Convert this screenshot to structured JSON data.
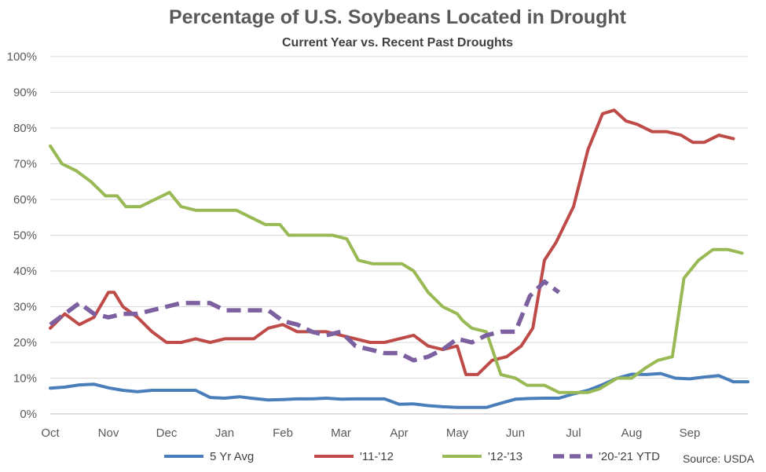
{
  "chart_data": {
    "type": "line",
    "title": "Percentage of U.S. Soybeans Located in Drought",
    "subtitle": "Current Year vs. Recent Past Droughts",
    "xlabel": "",
    "ylabel": "",
    "categories": [
      "Oct",
      "Nov",
      "Dec",
      "Jan",
      "Feb",
      "Mar",
      "Apr",
      "May",
      "Jun",
      "Jul",
      "Aug",
      "Sep"
    ],
    "ylim": [
      0,
      100
    ],
    "yticks": [
      "0%",
      "10%",
      "20%",
      "30%",
      "40%",
      "50%",
      "60%",
      "70%",
      "80%",
      "90%",
      "100%"
    ],
    "grid": true,
    "legend_position": "bottom",
    "source": "Source: USDA",
    "series": [
      {
        "name": "5 Yr Avg",
        "color": "#4a7ebb",
        "dashed": false,
        "points": [
          [
            0,
            7.2
          ],
          [
            0.25,
            7.5
          ],
          [
            0.5,
            8.1
          ],
          [
            0.75,
            8.3
          ],
          [
            1,
            7.3
          ],
          [
            1.25,
            6.6
          ],
          [
            1.5,
            6.2
          ],
          [
            1.75,
            6.6
          ],
          [
            2,
            6.6
          ],
          [
            2.25,
            6.6
          ],
          [
            2.5,
            6.6
          ],
          [
            2.75,
            4.6
          ],
          [
            3,
            4.4
          ],
          [
            3.25,
            4.8
          ],
          [
            3.5,
            4.3
          ],
          [
            3.75,
            3.9
          ],
          [
            4,
            4.0
          ],
          [
            4.25,
            4.2
          ],
          [
            4.5,
            4.2
          ],
          [
            4.75,
            4.4
          ],
          [
            5,
            4.1
          ],
          [
            5.25,
            4.2
          ],
          [
            5.5,
            4.2
          ],
          [
            5.75,
            4.2
          ],
          [
            6,
            2.7
          ],
          [
            6.25,
            2.8
          ],
          [
            6.5,
            2.3
          ],
          [
            6.75,
            2.0
          ],
          [
            7,
            1.8
          ],
          [
            7.25,
            1.8
          ],
          [
            7.5,
            1.8
          ],
          [
            7.75,
            3.0
          ],
          [
            8,
            4.1
          ],
          [
            8.25,
            4.3
          ],
          [
            8.5,
            4.4
          ],
          [
            8.75,
            4.4
          ],
          [
            9,
            5.6
          ],
          [
            9.25,
            6.6
          ],
          [
            9.5,
            8.2
          ],
          [
            9.75,
            10.0
          ],
          [
            10,
            11.1
          ],
          [
            10.25,
            11.0
          ],
          [
            10.5,
            11.3
          ],
          [
            10.75,
            10.0
          ],
          [
            11,
            9.8
          ],
          [
            11.25,
            10.3
          ],
          [
            11.5,
            10.7
          ],
          [
            11.75,
            9.0
          ],
          [
            12,
            9.0
          ]
        ]
      },
      {
        "name": "'11-'12",
        "color": "#be4b48",
        "dashed": false,
        "points": [
          [
            0,
            24
          ],
          [
            0.25,
            28
          ],
          [
            0.5,
            25
          ],
          [
            0.75,
            27
          ],
          [
            1,
            34
          ],
          [
            1.1,
            34
          ],
          [
            1.25,
            30
          ],
          [
            1.5,
            27
          ],
          [
            1.75,
            23
          ],
          [
            2,
            20
          ],
          [
            2.25,
            20
          ],
          [
            2.5,
            21
          ],
          [
            2.75,
            20
          ],
          [
            3,
            21
          ],
          [
            3.25,
            21
          ],
          [
            3.5,
            21
          ],
          [
            3.75,
            24
          ],
          [
            4,
            25
          ],
          [
            4.25,
            23
          ],
          [
            4.5,
            23
          ],
          [
            4.75,
            23
          ],
          [
            5,
            22
          ],
          [
            5.25,
            21
          ],
          [
            5.5,
            20
          ],
          [
            5.75,
            20
          ],
          [
            6,
            21
          ],
          [
            6.25,
            22
          ],
          [
            6.5,
            19
          ],
          [
            6.75,
            18
          ],
          [
            7,
            19
          ],
          [
            7.15,
            11
          ],
          [
            7.35,
            11
          ],
          [
            7.6,
            15
          ],
          [
            7.85,
            16
          ],
          [
            8.1,
            19
          ],
          [
            8.3,
            24
          ],
          [
            8.5,
            43
          ],
          [
            8.7,
            48
          ],
          [
            9,
            58
          ],
          [
            9.25,
            74
          ],
          [
            9.5,
            84
          ],
          [
            9.7,
            85
          ],
          [
            9.9,
            82
          ],
          [
            10.1,
            81
          ],
          [
            10.35,
            79
          ],
          [
            10.6,
            79
          ],
          [
            10.85,
            78
          ],
          [
            11.05,
            76
          ],
          [
            11.25,
            76
          ],
          [
            11.5,
            78
          ],
          [
            11.75,
            77
          ]
        ]
      },
      {
        "name": "'12-'13",
        "color": "#98b954",
        "dashed": false,
        "points": [
          [
            0,
            75
          ],
          [
            0.2,
            70
          ],
          [
            0.45,
            68
          ],
          [
            0.7,
            65
          ],
          [
            0.95,
            61
          ],
          [
            1.15,
            61
          ],
          [
            1.3,
            58
          ],
          [
            1.55,
            58
          ],
          [
            1.8,
            60
          ],
          [
            2.05,
            62
          ],
          [
            2.25,
            58
          ],
          [
            2.5,
            57
          ],
          [
            2.75,
            57
          ],
          [
            3,
            57
          ],
          [
            3.2,
            57
          ],
          [
            3.45,
            55
          ],
          [
            3.7,
            53
          ],
          [
            3.95,
            53
          ],
          [
            4.1,
            50
          ],
          [
            4.35,
            50
          ],
          [
            4.6,
            50
          ],
          [
            4.85,
            50
          ],
          [
            5.1,
            49
          ],
          [
            5.3,
            43
          ],
          [
            5.55,
            42
          ],
          [
            5.8,
            42
          ],
          [
            6.05,
            42
          ],
          [
            6.25,
            40
          ],
          [
            6.5,
            34
          ],
          [
            6.75,
            30
          ],
          [
            7,
            28
          ],
          [
            7.1,
            26
          ],
          [
            7.25,
            24
          ],
          [
            7.5,
            23
          ],
          [
            7.75,
            11
          ],
          [
            8,
            10
          ],
          [
            8.2,
            8
          ],
          [
            8.5,
            8
          ],
          [
            8.75,
            6
          ],
          [
            9,
            6
          ],
          [
            9.25,
            6
          ],
          [
            9.45,
            7
          ],
          [
            9.75,
            10
          ],
          [
            10,
            10
          ],
          [
            10.25,
            13
          ],
          [
            10.45,
            15
          ],
          [
            10.7,
            16
          ],
          [
            10.9,
            38
          ],
          [
            11.15,
            43
          ],
          [
            11.4,
            46
          ],
          [
            11.65,
            46
          ],
          [
            11.9,
            45
          ]
        ]
      },
      {
        "name": "'20-'21 YTD",
        "color": "#7d60a0",
        "dashed": true,
        "points": [
          [
            0,
            25
          ],
          [
            0.25,
            28
          ],
          [
            0.5,
            31
          ],
          [
            0.75,
            28
          ],
          [
            1,
            27
          ],
          [
            1.25,
            28
          ],
          [
            1.5,
            28
          ],
          [
            1.75,
            29
          ],
          [
            2,
            30
          ],
          [
            2.25,
            31
          ],
          [
            2.5,
            31
          ],
          [
            2.75,
            31
          ],
          [
            3,
            29
          ],
          [
            3.25,
            29
          ],
          [
            3.5,
            29
          ],
          [
            3.75,
            29
          ],
          [
            4,
            26
          ],
          [
            4.25,
            25
          ],
          [
            4.5,
            23
          ],
          [
            4.75,
            22
          ],
          [
            5,
            23
          ],
          [
            5.25,
            19
          ],
          [
            5.5,
            18
          ],
          [
            5.75,
            17
          ],
          [
            6,
            17
          ],
          [
            6.25,
            15
          ],
          [
            6.5,
            16
          ],
          [
            6.75,
            18
          ],
          [
            7,
            21
          ],
          [
            7.25,
            20
          ],
          [
            7.5,
            22
          ],
          [
            7.75,
            23
          ],
          [
            8,
            23
          ],
          [
            8.25,
            33
          ],
          [
            8.5,
            37
          ],
          [
            8.75,
            34
          ]
        ]
      }
    ]
  }
}
